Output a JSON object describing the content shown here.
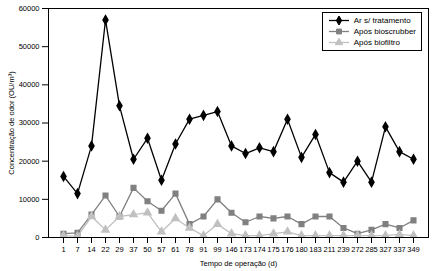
{
  "chart_data": {
    "type": "line",
    "xlabel": "Tempo de operação (d)",
    "ylabel": "Concentração de odor (OU/m³)",
    "categories": [
      "1",
      "7",
      "14",
      "22",
      "29",
      "37",
      "50",
      "57",
      "61",
      "78",
      "91",
      "99",
      "146",
      "173",
      "174",
      "175",
      "176",
      "180",
      "183",
      "211",
      "239",
      "272",
      "285",
      "327",
      "337",
      "349"
    ],
    "ylim": [
      0,
      60000
    ],
    "yticks": [
      0,
      10000,
      20000,
      30000,
      40000,
      50000,
      60000
    ],
    "grid": false,
    "legend": "top-right",
    "series": [
      {
        "name": "Ar s/ tratamento",
        "color": "#000000",
        "marker": "diamond",
        "line_style": "solid",
        "values": [
          16000,
          11500,
          24000,
          57000,
          34500,
          20500,
          26000,
          15000,
          24500,
          31000,
          32000,
          33000,
          24000,
          22000,
          23500,
          22500,
          31000,
          21000,
          27000,
          17000,
          14500,
          20000,
          14500,
          29000,
          22500,
          20500
        ]
      },
      {
        "name": "Após bioscrubber",
        "color": "#808080",
        "marker": "square",
        "line_style": "solid",
        "values": [
          1000,
          1200,
          6000,
          11000,
          5500,
          13000,
          9500,
          7000,
          11500,
          3500,
          5500,
          10000,
          6500,
          4000,
          5500,
          5000,
          5500,
          3500,
          5500,
          5500,
          2500,
          1000,
          2000,
          3500,
          2500,
          4500
        ]
      },
      {
        "name": "Após biofiltro",
        "color": "#c0c0c0",
        "marker": "triangle",
        "line_style": "solid",
        "values": [
          500,
          300,
          5500,
          2000,
          5500,
          6000,
          6500,
          1500,
          5000,
          2500,
          500,
          3500,
          1000,
          500,
          500,
          1000,
          1500,
          500,
          500,
          500,
          500,
          500,
          500,
          500,
          800,
          500
        ]
      }
    ]
  }
}
